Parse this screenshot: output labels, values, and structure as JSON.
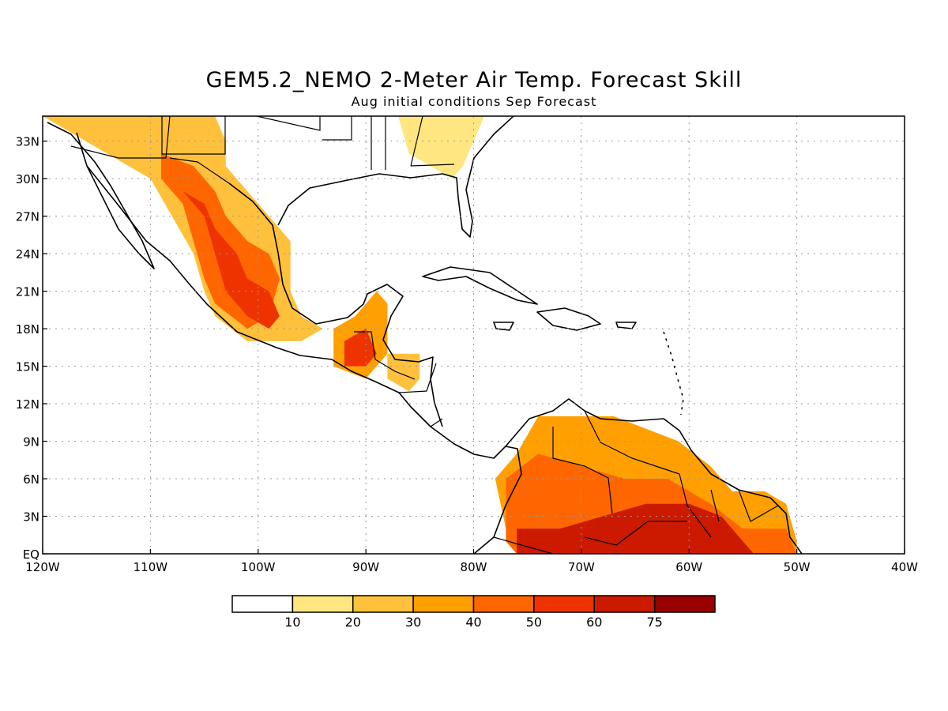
{
  "title": "GEM5.2_NEMO 2-Meter Air Temp. Forecast Skill",
  "subtitle": "Aug initial conditions  Sep Forecast",
  "axes": {
    "lon_range": [
      -120,
      -40
    ],
    "lat_range": [
      0,
      35
    ],
    "x_ticks": [
      {
        "value": -120,
        "label": "120W"
      },
      {
        "value": -110,
        "label": "110W"
      },
      {
        "value": -100,
        "label": "100W"
      },
      {
        "value": -90,
        "label": "90W"
      },
      {
        "value": -80,
        "label": "80W"
      },
      {
        "value": -70,
        "label": "70W"
      },
      {
        "value": -60,
        "label": "60W"
      },
      {
        "value": -50,
        "label": "50W"
      },
      {
        "value": -40,
        "label": "40W"
      }
    ],
    "y_ticks": [
      {
        "value": 0,
        "label": "EQ"
      },
      {
        "value": 3,
        "label": "3N"
      },
      {
        "value": 6,
        "label": "6N"
      },
      {
        "value": 9,
        "label": "9N"
      },
      {
        "value": 12,
        "label": "12N"
      },
      {
        "value": 15,
        "label": "15N"
      },
      {
        "value": 18,
        "label": "18N"
      },
      {
        "value": 21,
        "label": "21N"
      },
      {
        "value": 24,
        "label": "24N"
      },
      {
        "value": 27,
        "label": "27N"
      },
      {
        "value": 30,
        "label": "30N"
      },
      {
        "value": 33,
        "label": "33N"
      }
    ],
    "grid": "dotted"
  },
  "colorbar": {
    "colors": [
      "#ffffff",
      "#ffe680",
      "#ffc03c",
      "#ffa000",
      "#ff6600",
      "#ee3300",
      "#cc1a00",
      "#990000"
    ],
    "labels": [
      "10",
      "20",
      "30",
      "40",
      "50",
      "60",
      "75"
    ],
    "units": "%"
  },
  "regions": [
    {
      "name": "sw-us-mexico-north",
      "level": 2,
      "poly": [
        [
          -120,
          35
        ],
        [
          -112,
          35
        ],
        [
          -104,
          35
        ],
        [
          -103,
          33
        ],
        [
          -103,
          31
        ],
        [
          -101,
          29
        ],
        [
          -99,
          27
        ],
        [
          -97,
          25
        ],
        [
          -97,
          21
        ],
        [
          -96,
          19
        ],
        [
          -94,
          18
        ],
        [
          -96,
          17
        ],
        [
          -101,
          17
        ],
        [
          -104,
          19
        ],
        [
          -105,
          21
        ],
        [
          -106,
          24
        ],
        [
          -108,
          27
        ],
        [
          -110,
          30
        ],
        [
          -114,
          32
        ],
        [
          -118,
          34
        ]
      ]
    },
    {
      "name": "mexico-west-core",
      "level": 4,
      "poly": [
        [
          -109,
          32
        ],
        [
          -106,
          31
        ],
        [
          -104,
          29
        ],
        [
          -103,
          27
        ],
        [
          -101,
          25
        ],
        [
          -99,
          24
        ],
        [
          -98,
          22
        ],
        [
          -99,
          19
        ],
        [
          -101,
          18
        ],
        [
          -104,
          20
        ],
        [
          -105,
          22
        ],
        [
          -106,
          25
        ],
        [
          -107,
          28
        ],
        [
          -109,
          30
        ]
      ]
    },
    {
      "name": "mexico-west-hot",
      "level": 5,
      "poly": [
        [
          -107,
          29
        ],
        [
          -105,
          27
        ],
        [
          -104,
          24
        ],
        [
          -103,
          21
        ],
        [
          -101,
          19
        ],
        [
          -99,
          18
        ],
        [
          -98,
          19
        ],
        [
          -99,
          21
        ],
        [
          -101,
          22
        ],
        [
          -102,
          24
        ],
        [
          -104,
          26
        ],
        [
          -105,
          28
        ]
      ]
    },
    {
      "name": "yucatan-guatemala",
      "level": 3,
      "poly": [
        [
          -93,
          18
        ],
        [
          -91,
          19
        ],
        [
          -89,
          21
        ],
        [
          -88,
          20
        ],
        [
          -88,
          16
        ],
        [
          -90,
          14
        ],
        [
          -93,
          15
        ]
      ]
    },
    {
      "name": "guatemala-hot",
      "level": 5,
      "poly": [
        [
          -92,
          17
        ],
        [
          -90,
          18
        ],
        [
          -89,
          16
        ],
        [
          -90,
          15
        ],
        [
          -92,
          15
        ]
      ]
    },
    {
      "name": "honduras",
      "level": 2,
      "poly": [
        [
          -88,
          16
        ],
        [
          -85,
          16
        ],
        [
          -85,
          14
        ],
        [
          -86,
          13
        ],
        [
          -88,
          14
        ]
      ]
    },
    {
      "name": "se-us",
      "level": 1,
      "poly": [
        [
          -87,
          35
        ],
        [
          -79,
          35
        ],
        [
          -80,
          33
        ],
        [
          -81,
          31
        ],
        [
          -82,
          30
        ],
        [
          -84,
          31
        ],
        [
          -86,
          32
        ]
      ]
    },
    {
      "name": "s-america-base",
      "level": 3,
      "poly": [
        [
          -76,
          0
        ],
        [
          -77,
          2
        ],
        [
          -78,
          6
        ],
        [
          -76,
          8
        ],
        [
          -74,
          11
        ],
        [
          -71,
          11
        ],
        [
          -67,
          11
        ],
        [
          -64,
          10
        ],
        [
          -61,
          9
        ],
        [
          -58,
          7
        ],
        [
          -56,
          5
        ],
        [
          -53,
          5
        ],
        [
          -51,
          4
        ],
        [
          -50,
          1
        ],
        [
          -50,
          0
        ]
      ]
    },
    {
      "name": "s-america-mid",
      "level": 4,
      "poly": [
        [
          -77,
          1
        ],
        [
          -77,
          6
        ],
        [
          -74,
          8
        ],
        [
          -70,
          7
        ],
        [
          -66,
          6
        ],
        [
          -62,
          6
        ],
        [
          -58,
          4
        ],
        [
          -55,
          2
        ],
        [
          -51,
          2
        ],
        [
          -50,
          0
        ],
        [
          -76,
          0
        ]
      ]
    },
    {
      "name": "s-america-hot",
      "level": 6,
      "poly": [
        [
          -76,
          0
        ],
        [
          -76,
          2
        ],
        [
          -72,
          2
        ],
        [
          -68,
          3
        ],
        [
          -64,
          4
        ],
        [
          -60,
          4
        ],
        [
          -57,
          3
        ],
        [
          -55,
          1
        ],
        [
          -54,
          0
        ]
      ]
    }
  ]
}
